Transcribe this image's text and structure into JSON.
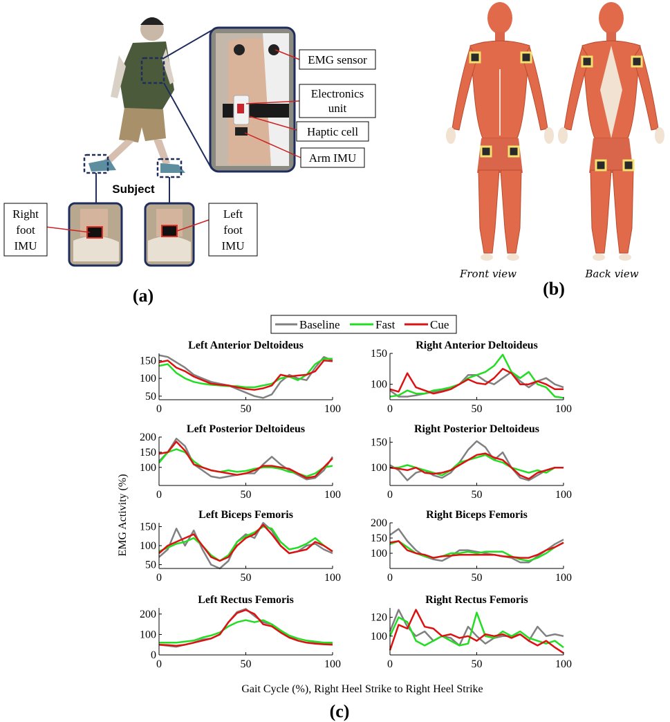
{
  "panel_a": {
    "label": "(a)",
    "subject_label": "Subject",
    "callouts": {
      "emg_sensor": "EMG sensor",
      "electronics_unit_1": "Electronics",
      "electronics_unit_2": "unit",
      "haptic_cell": "Haptic cell",
      "arm_imu": "Arm IMU",
      "right_foot_1": "Right",
      "right_foot_2": "foot",
      "right_foot_3": "IMU",
      "left_foot_1": "Left",
      "left_foot_2": "foot",
      "left_foot_3": "IMU"
    }
  },
  "panel_b": {
    "label": "(b)",
    "front_view": "Front view",
    "back_view": "Back view"
  },
  "panel_c": {
    "label": "(c)",
    "ylabel": "EMG Activity (%)",
    "xlabel": "Gait Cycle (%), Right Heel Strike to Right Heel Strike"
  },
  "colors": {
    "baseline": "#808080",
    "fast": "#22dd22",
    "cue": "#dd1111",
    "frame_navy": "#1f2d5c",
    "muscle": "#e06a4a",
    "muscle_dark": "#b94a2e",
    "tendon": "#f2e2d2"
  },
  "chart_data": {
    "type": "line",
    "legend": {
      "entries": [
        "Baseline",
        "Fast",
        "Cue"
      ],
      "placement": "top-center"
    },
    "x_range": [
      0,
      100
    ],
    "x_ticks": [
      0,
      50,
      100
    ],
    "subplots": [
      {
        "title": "Left Anterior Deltoideus",
        "ylim": [
          40,
          170
        ],
        "yticks": [
          50,
          100,
          150
        ],
        "x": [
          0,
          5,
          10,
          15,
          20,
          25,
          30,
          35,
          40,
          45,
          50,
          55,
          60,
          65,
          70,
          75,
          80,
          85,
          90,
          95,
          100
        ],
        "series": [
          {
            "name": "Baseline",
            "values": [
              165,
              160,
              145,
              130,
              110,
              100,
              90,
              85,
              80,
              70,
              60,
              50,
              45,
              55,
              90,
              110,
              100,
              95,
              130,
              160,
              150
            ]
          },
          {
            "name": "Fast",
            "values": [
              135,
              140,
              115,
              100,
              90,
              85,
              82,
              80,
              78,
              78,
              75,
              75,
              80,
              85,
              100,
              105,
              95,
              110,
              140,
              155,
              155
            ]
          },
          {
            "name": "Cue",
            "values": [
              145,
              150,
              130,
              120,
              105,
              95,
              85,
              82,
              80,
              75,
              70,
              68,
              72,
              80,
              110,
              105,
              108,
              110,
              120,
              150,
              148
            ]
          }
        ]
      },
      {
        "title": "Right Anterior Deltoideus",
        "ylim": [
          75,
          150
        ],
        "yticks": [
          100,
          150
        ],
        "x": [
          0,
          5,
          10,
          15,
          20,
          25,
          30,
          35,
          40,
          45,
          50,
          55,
          60,
          65,
          70,
          75,
          80,
          85,
          90,
          95,
          100
        ],
        "series": [
          {
            "name": "Baseline",
            "values": [
              90,
              80,
              80,
              82,
              85,
              88,
              90,
              95,
              100,
              115,
              115,
              105,
              100,
              110,
              120,
              105,
              95,
              105,
              110,
              100,
              95
            ]
          },
          {
            "name": "Fast",
            "values": [
              80,
              82,
              90,
              85,
              85,
              90,
              92,
              95,
              100,
              110,
              115,
              120,
              130,
              148,
              120,
              110,
              120,
              100,
              95,
              80,
              78
            ]
          },
          {
            "name": "Cue",
            "values": [
              92,
              88,
              118,
              95,
              90,
              85,
              88,
              92,
              100,
              108,
              102,
              100,
              110,
              125,
              118,
              100,
              100,
              105,
              100,
              92,
              92
            ]
          }
        ]
      },
      {
        "title": "Left Posterior Deltoideus",
        "ylim": [
          40,
          200
        ],
        "yticks": [
          100,
          150,
          200
        ],
        "x": [
          0,
          5,
          10,
          15,
          20,
          25,
          30,
          35,
          40,
          45,
          50,
          55,
          60,
          65,
          70,
          75,
          80,
          85,
          90,
          95,
          100
        ],
        "series": [
          {
            "name": "Baseline",
            "values": [
              120,
              150,
              195,
              170,
              110,
              90,
              70,
              65,
              70,
              75,
              80,
              80,
              110,
              135,
              110,
              90,
              75,
              60,
              65,
              90,
              135
            ]
          },
          {
            "name": "Fast",
            "values": [
              115,
              150,
              160,
              150,
              120,
              100,
              90,
              85,
              90,
              85,
              88,
              95,
              100,
              100,
              95,
              85,
              80,
              70,
              80,
              100,
              105
            ]
          },
          {
            "name": "Cue",
            "values": [
              145,
              150,
              185,
              155,
              110,
              100,
              90,
              85,
              80,
              75,
              80,
              90,
              105,
              105,
              100,
              95,
              80,
              65,
              70,
              100,
              130
            ]
          }
        ]
      },
      {
        "title": "Right Posterior Deltoideus",
        "ylim": [
          65,
          160
        ],
        "yticks": [
          100,
          150
        ],
        "x": [
          0,
          5,
          10,
          15,
          20,
          25,
          30,
          35,
          40,
          45,
          50,
          55,
          60,
          65,
          70,
          75,
          80,
          85,
          90,
          95,
          100
        ],
        "series": [
          {
            "name": "Baseline",
            "values": [
              105,
              95,
              75,
              90,
              95,
              85,
              80,
              90,
              110,
              135,
              152,
              140,
              115,
              130,
              100,
              80,
              75,
              85,
              95,
              100,
              100
            ]
          },
          {
            "name": "Fast",
            "values": [
              100,
              100,
              105,
              100,
              95,
              90,
              85,
              95,
              110,
              115,
              120,
              125,
              115,
              110,
              100,
              95,
              90,
              95,
              90,
              100,
              100
            ]
          },
          {
            "name": "Cue",
            "values": [
              100,
              98,
              95,
              100,
              90,
              88,
              90,
              95,
              105,
              115,
              125,
              128,
              120,
              115,
              100,
              85,
              78,
              90,
              95,
              100,
              100
            ]
          }
        ]
      },
      {
        "title": "Left Biceps Femoris",
        "ylim": [
          40,
          160
        ],
        "yticks": [
          50,
          100,
          150
        ],
        "x": [
          0,
          5,
          10,
          15,
          20,
          25,
          30,
          35,
          40,
          45,
          50,
          55,
          60,
          65,
          70,
          75,
          80,
          85,
          90,
          95,
          100
        ],
        "series": [
          {
            "name": "Baseline",
            "values": [
              70,
              90,
              145,
              100,
              140,
              90,
              50,
              40,
              60,
              110,
              130,
              120,
              160,
              140,
              100,
              80,
              85,
              100,
              105,
              90,
              80
            ]
          },
          {
            "name": "Fast",
            "values": [
              85,
              95,
              105,
              110,
              120,
              100,
              75,
              60,
              75,
              110,
              125,
              135,
              150,
              145,
              110,
              90,
              95,
              105,
              120,
              100,
              85
            ]
          },
          {
            "name": "Cue",
            "values": [
              80,
              100,
              110,
              120,
              130,
              100,
              70,
              60,
              70,
              100,
              120,
              130,
              155,
              130,
              100,
              80,
              85,
              90,
              110,
              100,
              85
            ]
          }
        ]
      },
      {
        "title": "Right Biceps Femoris",
        "ylim": [
          50,
          200
        ],
        "yticks": [
          100,
          150,
          200
        ],
        "x": [
          0,
          5,
          10,
          15,
          20,
          25,
          30,
          35,
          40,
          45,
          50,
          55,
          60,
          65,
          70,
          75,
          80,
          85,
          90,
          95,
          100
        ],
        "series": [
          {
            "name": "Baseline",
            "values": [
              160,
              180,
              140,
              110,
              90,
              80,
              75,
              90,
              110,
              110,
              105,
              100,
              95,
              90,
              85,
              70,
              70,
              90,
              110,
              130,
              145
            ]
          },
          {
            "name": "Fast",
            "values": [
              130,
              140,
              120,
              100,
              90,
              85,
              90,
              100,
              100,
              105,
              100,
              105,
              105,
              105,
              90,
              80,
              75,
              85,
              100,
              120,
              135
            ]
          },
          {
            "name": "Cue",
            "values": [
              135,
              140,
              110,
              100,
              95,
              85,
              90,
              92,
              95,
              95,
              95,
              95,
              95,
              90,
              88,
              85,
              85,
              95,
              110,
              120,
              135
            ]
          }
        ]
      },
      {
        "title": "Left Rectus Femoris",
        "ylim": [
          0,
          230
        ],
        "yticks": [
          0,
          100,
          200
        ],
        "x": [
          0,
          5,
          10,
          15,
          20,
          25,
          30,
          35,
          40,
          45,
          50,
          55,
          60,
          65,
          70,
          75,
          80,
          85,
          90,
          95,
          100
        ],
        "series": [
          {
            "name": "Baseline",
            "values": [
              50,
              45,
              40,
              50,
              60,
              75,
              80,
              100,
              160,
              210,
              225,
              190,
              160,
              150,
              120,
              90,
              70,
              60,
              58,
              55,
              55
            ]
          },
          {
            "name": "Fast",
            "values": [
              60,
              60,
              60,
              65,
              70,
              85,
              95,
              110,
              140,
              160,
              170,
              160,
              170,
              150,
              120,
              95,
              80,
              70,
              65,
              60,
              60
            ]
          },
          {
            "name": "Cue",
            "values": [
              50,
              48,
              45,
              50,
              60,
              70,
              80,
              100,
              160,
              205,
              220,
              200,
              150,
              140,
              110,
              85,
              70,
              60,
              55,
              52,
              50
            ]
          }
        ]
      },
      {
        "title": "Right Rectus Femoris",
        "ylim": [
          80,
          130
        ],
        "yticks": [
          100,
          120
        ],
        "x": [
          0,
          5,
          10,
          15,
          20,
          25,
          30,
          35,
          40,
          45,
          50,
          55,
          60,
          65,
          70,
          75,
          80,
          85,
          90,
          95,
          100
        ],
        "series": [
          {
            "name": "Baseline",
            "values": [
              105,
              128,
              110,
              100,
              105,
              95,
              100,
              98,
              90,
              110,
              100,
              92,
              98,
              100,
              100,
              102,
              95,
              110,
              100,
              102,
              100
            ]
          },
          {
            "name": "Fast",
            "values": [
              100,
              120,
              115,
              95,
              90,
              95,
              100,
              95,
              90,
              92,
              125,
              100,
              98,
              105,
              100,
              105,
              98,
              95,
              92,
              95,
              88
            ]
          },
          {
            "name": "Cue",
            "values": [
              85,
              112,
              108,
              128,
              110,
              108,
              100,
              102,
              98,
              100,
              95,
              102,
              100,
              102,
              98,
              102,
              95,
              90,
              95,
              88,
              82
            ]
          }
        ]
      }
    ]
  }
}
